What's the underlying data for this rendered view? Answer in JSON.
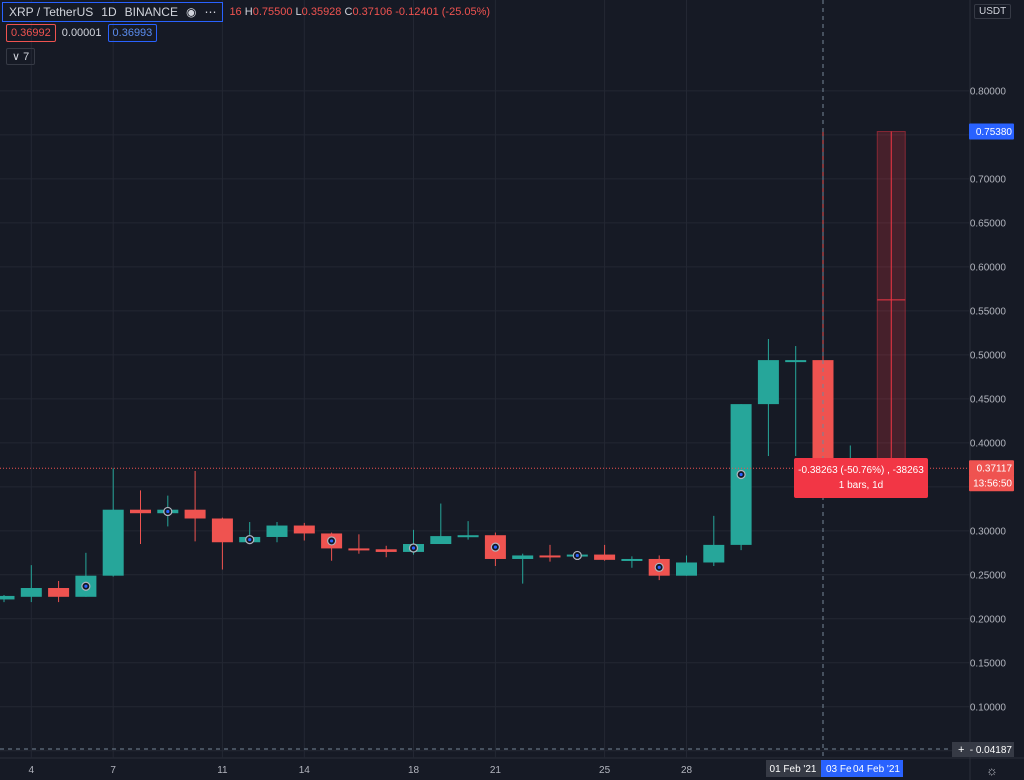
{
  "header": {
    "symbol": "XRP / TetherUS",
    "interval": "1D",
    "exchange": "BINANCE",
    "ohlc": {
      "o_partial": "16",
      "h_label": "H",
      "h": "0.75500",
      "l_label": "L",
      "l": "0.35928",
      "c_label": "C",
      "c": "0.37106",
      "change": "-0.12401 (-25.05%)"
    }
  },
  "quote": {
    "bid": "0.36992",
    "spread": "0.00001",
    "ask": "0.36993"
  },
  "indicators_count": "7",
  "currency": "USDT",
  "colors": {
    "up": "#26a69a",
    "down": "#ef5350",
    "background": "#161a25",
    "grid": "#232733",
    "axis_text": "#b2b5be",
    "highlight": "#2962ff"
  },
  "chart_data": {
    "type": "candlestick",
    "symbol": "XRP/USDT",
    "interval": "1D",
    "y_range": [
      0.0418,
      0.8385
    ],
    "y_ticks": [
      "0.80000",
      "0.75000",
      "0.70000",
      "0.65000",
      "0.60000",
      "0.55000",
      "0.50000",
      "0.45000",
      "0.40000",
      "0.35000",
      "0.30000",
      "0.25000",
      "0.20000",
      "0.15000",
      "0.10000",
      "0.05000"
    ],
    "x_ticks": [
      {
        "label": "4",
        "day": 4
      },
      {
        "label": "7",
        "day": 7
      },
      {
        "label": "11",
        "day": 11
      },
      {
        "label": "14",
        "day": 14
      },
      {
        "label": "18",
        "day": 18
      },
      {
        "label": "21",
        "day": 21
      },
      {
        "label": "25",
        "day": 25
      },
      {
        "label": "28",
        "day": 28
      }
    ],
    "candles": [
      {
        "day": 3,
        "o": 0.222,
        "h": 0.227,
        "l": 0.219,
        "c": 0.226
      },
      {
        "day": 4,
        "o": 0.225,
        "h": 0.261,
        "l": 0.219,
        "c": 0.235
      },
      {
        "day": 5,
        "o": 0.235,
        "h": 0.243,
        "l": 0.219,
        "c": 0.225
      },
      {
        "day": 6,
        "o": 0.225,
        "h": 0.275,
        "l": 0.225,
        "c": 0.249
      },
      {
        "day": 7,
        "o": 0.249,
        "h": 0.371,
        "l": 0.248,
        "c": 0.324
      },
      {
        "day": 8,
        "o": 0.324,
        "h": 0.346,
        "l": 0.285,
        "c": 0.32
      },
      {
        "day": 9,
        "o": 0.32,
        "h": 0.34,
        "l": 0.305,
        "c": 0.324
      },
      {
        "day": 10,
        "o": 0.324,
        "h": 0.368,
        "l": 0.288,
        "c": 0.314
      },
      {
        "day": 11,
        "o": 0.314,
        "h": 0.315,
        "l": 0.256,
        "c": 0.287
      },
      {
        "day": 12,
        "o": 0.287,
        "h": 0.31,
        "l": 0.285,
        "c": 0.293
      },
      {
        "day": 13,
        "o": 0.293,
        "h": 0.31,
        "l": 0.287,
        "c": 0.306
      },
      {
        "day": 14,
        "o": 0.306,
        "h": 0.309,
        "l": 0.289,
        "c": 0.297
      },
      {
        "day": 15,
        "o": 0.297,
        "h": 0.298,
        "l": 0.266,
        "c": 0.28
      },
      {
        "day": 16,
        "o": 0.28,
        "h": 0.296,
        "l": 0.274,
        "c": 0.279
      },
      {
        "day": 17,
        "o": 0.279,
        "h": 0.283,
        "l": 0.27,
        "c": 0.276
      },
      {
        "day": 18,
        "o": 0.276,
        "h": 0.301,
        "l": 0.273,
        "c": 0.285
      },
      {
        "day": 19,
        "o": 0.285,
        "h": 0.331,
        "l": 0.285,
        "c": 0.294
      },
      {
        "day": 20,
        "o": 0.294,
        "h": 0.311,
        "l": 0.29,
        "c": 0.295
      },
      {
        "day": 21,
        "o": 0.295,
        "h": 0.298,
        "l": 0.26,
        "c": 0.268
      },
      {
        "day": 22,
        "o": 0.268,
        "h": 0.274,
        "l": 0.24,
        "c": 0.272
      },
      {
        "day": 23,
        "o": 0.272,
        "h": 0.284,
        "l": 0.265,
        "c": 0.271
      },
      {
        "day": 24,
        "o": 0.271,
        "h": 0.276,
        "l": 0.268,
        "c": 0.273
      },
      {
        "day": 25,
        "o": 0.273,
        "h": 0.284,
        "l": 0.266,
        "c": 0.267
      },
      {
        "day": 26,
        "o": 0.267,
        "h": 0.271,
        "l": 0.258,
        "c": 0.268
      },
      {
        "day": 27,
        "o": 0.268,
        "h": 0.272,
        "l": 0.244,
        "c": 0.249
      },
      {
        "day": 28,
        "o": 0.249,
        "h": 0.272,
        "l": 0.249,
        "c": 0.264
      },
      {
        "day": 29,
        "o": 0.264,
        "h": 0.317,
        "l": 0.26,
        "c": 0.284
      },
      {
        "day": 30,
        "o": 0.284,
        "h": 0.444,
        "l": 0.278,
        "c": 0.444
      },
      {
        "day": 31,
        "o": 0.444,
        "h": 0.518,
        "l": 0.385,
        "c": 0.494
      },
      {
        "day": 32,
        "o": 0.494,
        "h": 0.51,
        "l": 0.385,
        "c": 0.494
      },
      {
        "day": 33,
        "o": 0.494,
        "h": 0.755,
        "l": 0.359,
        "c": 0.371
      },
      {
        "day": 34,
        "o": 0.371,
        "h": 0.397,
        "l": 0.365,
        "c": 0.372
      }
    ],
    "event_markers": [
      6,
      9,
      12,
      15,
      18,
      21,
      24,
      27,
      30,
      34
    ],
    "current_price": 0.37117,
    "measure": {
      "from_price": 0.7538,
      "to_price": 0.37117,
      "day": 35.5,
      "label_line1": "-0.38263 (-50.76%) , -38263",
      "label_line2": "1 bars, 1d"
    },
    "crosshair_day": 33
  },
  "price_axis": {
    "current_label": "0.37117",
    "countdown": "13:56:50",
    "measure_top_label": "0.75380",
    "crosshair_value": "0.04187"
  },
  "time_axis": {
    "crosshair_date": "01 Feb '21",
    "range_start": "03 Fe",
    "range_end": "04 Feb '21"
  }
}
